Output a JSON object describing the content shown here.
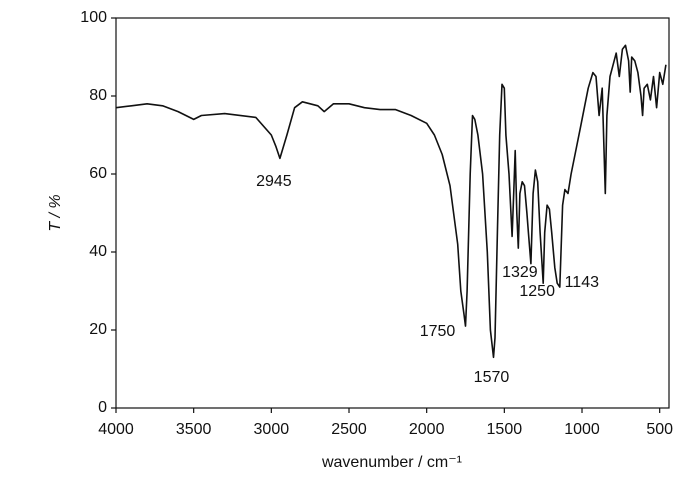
{
  "chart_data": {
    "type": "line",
    "xlabel": "wavenumber / cm⁻¹",
    "ylabel": "T / %",
    "xlim": [
      4000,
      440
    ],
    "ylim": [
      0,
      100
    ],
    "xticks": [
      4000,
      3500,
      3000,
      2500,
      2000,
      1500,
      1000,
      500
    ],
    "yticks": [
      0,
      20,
      40,
      60,
      80,
      100
    ],
    "x": [
      4000,
      3900,
      3800,
      3700,
      3600,
      3500,
      3450,
      3300,
      3100,
      3000,
      2970,
      2945,
      2900,
      2850,
      2800,
      2700,
      2660,
      2600,
      2500,
      2400,
      2300,
      2200,
      2100,
      2000,
      1950,
      1900,
      1850,
      1800,
      1780,
      1760,
      1750,
      1740,
      1720,
      1705,
      1690,
      1670,
      1640,
      1610,
      1590,
      1570,
      1560,
      1545,
      1530,
      1515,
      1500,
      1490,
      1470,
      1450,
      1440,
      1430,
      1420,
      1410,
      1400,
      1385,
      1370,
      1355,
      1345,
      1329,
      1315,
      1300,
      1285,
      1270,
      1250,
      1240,
      1225,
      1210,
      1195,
      1175,
      1160,
      1143,
      1125,
      1110,
      1090,
      1070,
      1040,
      1010,
      980,
      960,
      930,
      910,
      890,
      870,
      860,
      850,
      840,
      820,
      800,
      780,
      760,
      740,
      720,
      700,
      690,
      680,
      660,
      640,
      620,
      610,
      600,
      580,
      560,
      540,
      520,
      500,
      480,
      460
    ],
    "series": [
      {
        "color": "#111111",
        "values": [
          77,
          77.5,
          78,
          77.5,
          76,
          74,
          75,
          75.5,
          74.5,
          70,
          67,
          64,
          70,
          77,
          78.5,
          77.5,
          76,
          78,
          78,
          77,
          76.5,
          76.5,
          75,
          73,
          70,
          65,
          57,
          42,
          30,
          24,
          21,
          30,
          60,
          75,
          74,
          70,
          60,
          40,
          20,
          13,
          18,
          45,
          70,
          83,
          82,
          70,
          60,
          44,
          55,
          66,
          50,
          41,
          55,
          58,
          57,
          50,
          45,
          37,
          55,
          61,
          58,
          45,
          32,
          45,
          52,
          51,
          45,
          36,
          32,
          31,
          52,
          56,
          55,
          60,
          66,
          72,
          78,
          82,
          86,
          85,
          75,
          82,
          68,
          55,
          75,
          85,
          88,
          91,
          85,
          92,
          93,
          89,
          81,
          90,
          89,
          86,
          80,
          75,
          82,
          83,
          79,
          85,
          77,
          86,
          83,
          88
        ]
      }
    ],
    "annotations": [
      "2945",
      "1750",
      "1570",
      "1329",
      "1250",
      "1143"
    ]
  }
}
